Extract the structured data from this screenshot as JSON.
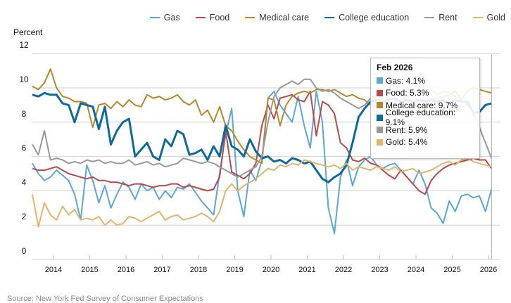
{
  "chart_data": {
    "type": "line",
    "title": "",
    "ylabel": "Percent",
    "xlabel": "",
    "ylim": [
      0,
      12
    ],
    "yticks": [
      0,
      2,
      4,
      6,
      8,
      10,
      12
    ],
    "xticks": [
      "2014",
      "2015",
      "2016",
      "2017",
      "2018",
      "2019",
      "2020",
      "2021",
      "2022",
      "2023",
      "2024",
      "2025",
      "2026"
    ],
    "x_start": "2013-06",
    "x_step_months": 2,
    "grid": true,
    "legend_position": "top-right",
    "series": [
      {
        "name": "Gas",
        "color": "#5ba7d9",
        "width": 2,
        "values": [
          5.6,
          5.0,
          4.6,
          4.8,
          5.2,
          4.9,
          4.6,
          3.8,
          2.3,
          5.5,
          4.6,
          3.3,
          4.3,
          3.0,
          3.8,
          4.5,
          4.2,
          3.5,
          4.4,
          4.0,
          4.2,
          3.5,
          4.0,
          3.6,
          4.2,
          4.1,
          4.4,
          3.9,
          3.4,
          3.0,
          2.6,
          5.0,
          7.3,
          8.8,
          4.0,
          2.5,
          5.2,
          4.6,
          5.8,
          9.4,
          9.8,
          9.0,
          8.5,
          8.0,
          9.5,
          7.8,
          6.5,
          9.8,
          8.0,
          3.0,
          1.5,
          4.8,
          5.8,
          4.3,
          5.4,
          5.8,
          6.0,
          5.5,
          5.3,
          5.5,
          5.6,
          5.2,
          4.8,
          4.4,
          5.2,
          4.4,
          3.0,
          2.7,
          2.1,
          3.4,
          2.8,
          3.7,
          3.8,
          3.6,
          3.7,
          2.8,
          4.1
        ]
      },
      {
        "name": "Food",
        "color": "#b94a48",
        "width": 2,
        "values": [
          5.3,
          5.2,
          5.2,
          5.3,
          5.4,
          5.2,
          5.0,
          4.9,
          4.8,
          4.7,
          4.8,
          4.6,
          4.6,
          4.5,
          4.5,
          4.4,
          4.3,
          4.4,
          4.4,
          4.3,
          4.2,
          4.3,
          4.3,
          4.4,
          4.4,
          4.2,
          4.3,
          4.2,
          4.1,
          4.0,
          4.1,
          4.8,
          7.5,
          5.1,
          4.9,
          4.7,
          5.0,
          5.6,
          7.8,
          9.0,
          8.2,
          9.4,
          9.5,
          9.6,
          9.3,
          9.2,
          9.8,
          7.2,
          9.2,
          9.0,
          8.5,
          6.8,
          6.5,
          5.8,
          5.7,
          5.9,
          5.6,
          5.5,
          5.2,
          4.9,
          4.7,
          5.2,
          4.8,
          4.4,
          4.0,
          3.8,
          4.6,
          5.0,
          5.3,
          5.5,
          5.6,
          5.7,
          5.8,
          5.9,
          5.8,
          5.8,
          5.3
        ]
      },
      {
        "name": "Medical care",
        "color": "#b8872a",
        "width": 2,
        "values": [
          10.1,
          9.9,
          10.3,
          11.1,
          10.0,
          9.5,
          9.4,
          9.2,
          9.2,
          9.1,
          7.7,
          9.0,
          9.1,
          8.8,
          9.2,
          8.9,
          9.3,
          9.0,
          8.9,
          9.6,
          9.4,
          9.5,
          9.3,
          9.4,
          9.6,
          9.2,
          9.0,
          9.3,
          8.4,
          8.7,
          8.0,
          8.9,
          7.8,
          7.5,
          6.9,
          6.4,
          6.0,
          5.8,
          5.6,
          9.4,
          9.3,
          7.8,
          9.0,
          9.5,
          9.7,
          9.8,
          9.7,
          9.9,
          9.9,
          9.8,
          9.9,
          9.7,
          9.5,
          9.6,
          9.4,
          9.3,
          9.0,
          8.9,
          9.1,
          8.8,
          9.3,
          9.0,
          9.6,
          9.1,
          8.8,
          9.0,
          9.3,
          9.4,
          9.5,
          9.6,
          9.8,
          9.3,
          9.8,
          10.0,
          9.9,
          9.8,
          9.7
        ]
      },
      {
        "name": "College education",
        "color": "#0e6a9c",
        "width": 3,
        "values": [
          9.6,
          9.5,
          9.7,
          9.6,
          9.6,
          9.1,
          9.0,
          8.0,
          9.1,
          9.0,
          8.9,
          7.6,
          8.9,
          6.7,
          7.5,
          8.0,
          8.2,
          6.0,
          6.4,
          6.8,
          6.0,
          5.8,
          7.0,
          6.6,
          7.5,
          7.3,
          6.1,
          6.2,
          6.4,
          5.8,
          6.6,
          6.0,
          7.8,
          6.6,
          6.4,
          6.0,
          7.0,
          6.3,
          5.9,
          6.0,
          5.7,
          5.8,
          5.6,
          5.9,
          5.8,
          5.6,
          5.7,
          5.2,
          4.7,
          4.5,
          4.8,
          5.0,
          5.5,
          6.8,
          8.3,
          8.8,
          9.2,
          9.3,
          9.2,
          9.3,
          9.4,
          9.2,
          9.3,
          9.2,
          9.3,
          9.2,
          9.3,
          9.2,
          9.3,
          9.1,
          9.3,
          9.2,
          9.2,
          8.5,
          8.6,
          9.0,
          9.1
        ]
      },
      {
        "name": "Rent",
        "color": "#999999",
        "width": 2,
        "values": [
          6.7,
          6.1,
          7.5,
          5.8,
          5.9,
          5.8,
          5.6,
          5.7,
          5.6,
          5.8,
          5.7,
          5.8,
          5.6,
          5.7,
          5.6,
          5.6,
          5.8,
          5.5,
          5.6,
          5.7,
          5.5,
          5.6,
          5.4,
          5.5,
          5.6,
          5.9,
          5.8,
          5.7,
          5.6,
          5.7,
          5.6,
          5.4,
          5.2,
          5.0,
          4.8,
          5.0,
          5.2,
          5.4,
          6.0,
          8.0,
          9.5,
          10.0,
          10.2,
          10.4,
          10.2,
          10.5,
          10.5,
          10.0,
          9.8,
          9.9,
          9.7,
          9.4,
          9.2,
          9.0,
          8.8,
          9.0,
          9.4,
          9.6,
          9.5,
          9.8,
          9.7,
          9.8,
          10.0,
          9.7,
          9.8,
          9.5,
          9.9,
          9.6,
          9.8,
          9.7,
          9.5,
          9.3,
          9.0,
          8.5,
          7.7,
          6.8,
          5.9
        ]
      },
      {
        "name": "Gold",
        "color": "#e3b56b",
        "width": 2,
        "values": [
          3.8,
          1.9,
          3.3,
          2.6,
          2.3,
          3.1,
          2.6,
          2.9,
          2.3,
          2.4,
          2.3,
          2.5,
          2.0,
          2.3,
          2.0,
          2.1,
          2.5,
          2.4,
          2.2,
          2.4,
          2.6,
          2.8,
          2.3,
          2.5,
          2.6,
          2.3,
          2.4,
          2.5,
          2.7,
          2.5,
          2.2,
          2.8,
          4.0,
          4.4,
          4.0,
          4.3,
          4.5,
          4.7,
          5.0,
          5.3,
          5.2,
          5.5,
          5.4,
          5.6,
          5.5,
          5.8,
          5.7,
          5.6,
          5.5,
          5.4,
          5.5,
          5.3,
          5.6,
          5.2,
          5.4,
          5.3,
          5.2,
          5.4,
          5.3,
          5.2,
          5.4,
          5.1,
          5.2,
          5.3,
          5.0,
          5.1,
          5.2,
          5.4,
          5.6,
          5.7,
          5.5,
          5.8,
          5.9,
          5.7,
          5.6,
          5.5,
          5.4
        ]
      }
    ]
  },
  "legend": {
    "items": [
      {
        "label": "Gas",
        "color": "#5ba7d9"
      },
      {
        "label": "Food",
        "color": "#b94a48"
      },
      {
        "label": "Medical care",
        "color": "#b8872a"
      },
      {
        "label": "College education",
        "color": "#0e6a9c"
      },
      {
        "label": "Rent",
        "color": "#999999"
      },
      {
        "label": "Gold",
        "color": "#e3b56b"
      }
    ]
  },
  "tooltip": {
    "title": "Feb 2026",
    "rows": [
      {
        "label": "Gas: 4.1%",
        "color": "#5ba7d9"
      },
      {
        "label": "Food: 5.3%",
        "color": "#b94a48"
      },
      {
        "label": "Medical care: 9.7%",
        "color": "#b8872a"
      },
      {
        "label": "College education: 9.1%",
        "color": "#0e6a9c"
      },
      {
        "label": "Rent: 5.9%",
        "color": "#999999"
      },
      {
        "label": "Gold: 5.4%",
        "color": "#e3b56b"
      }
    ]
  },
  "source": "Source: New York Fed Survey of Consumer Expectations"
}
